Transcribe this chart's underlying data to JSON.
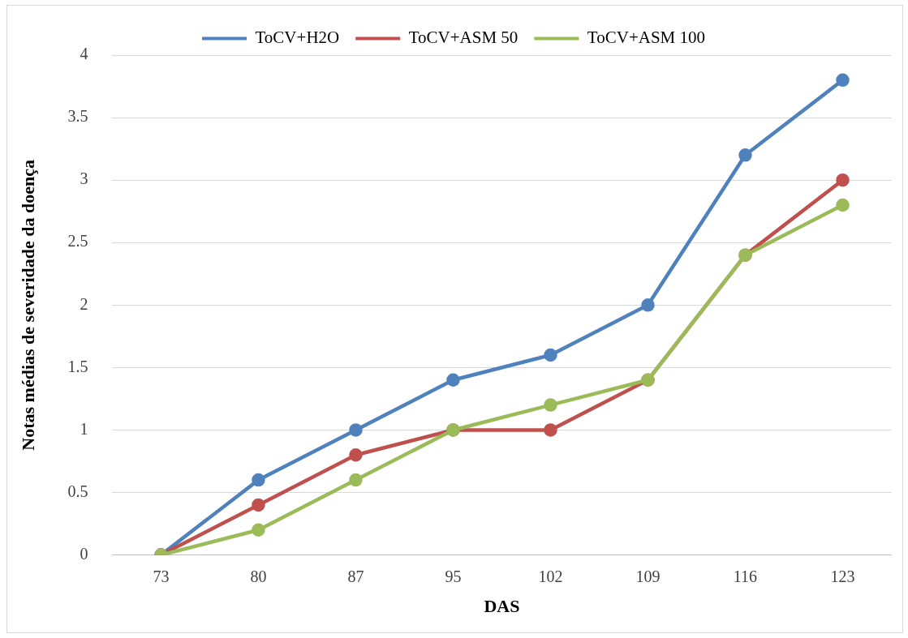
{
  "chart_data": {
    "type": "line",
    "xlabel": "DAS",
    "ylabel": "Notas médias de severidade da doença",
    "categories": [
      "73",
      "80",
      "87",
      "95",
      "102",
      "109",
      "116",
      "123"
    ],
    "series": [
      {
        "name": "ToCV+H2O",
        "color": "#4f81bd",
        "values": [
          0,
          0.6,
          1,
          1.4,
          1.6,
          2,
          3.2,
          3.8
        ]
      },
      {
        "name": "ToCV+ASM 50",
        "color": "#c0504d",
        "values": [
          0,
          0.4,
          0.8,
          1,
          1,
          1.4,
          2.4,
          3
        ]
      },
      {
        "name": "ToCV+ASM 100",
        "color": "#9bbb59",
        "values": [
          0,
          0.2,
          0.6,
          1,
          1.2,
          1.4,
          2.4,
          2.8
        ]
      }
    ],
    "ylim": [
      0,
      4
    ],
    "yticks": [
      0,
      0.5,
      1,
      1.5,
      2,
      2.5,
      3,
      3.5,
      4
    ],
    "grid": "y",
    "legend": "top",
    "marker": "circle",
    "line_style": "solid"
  }
}
